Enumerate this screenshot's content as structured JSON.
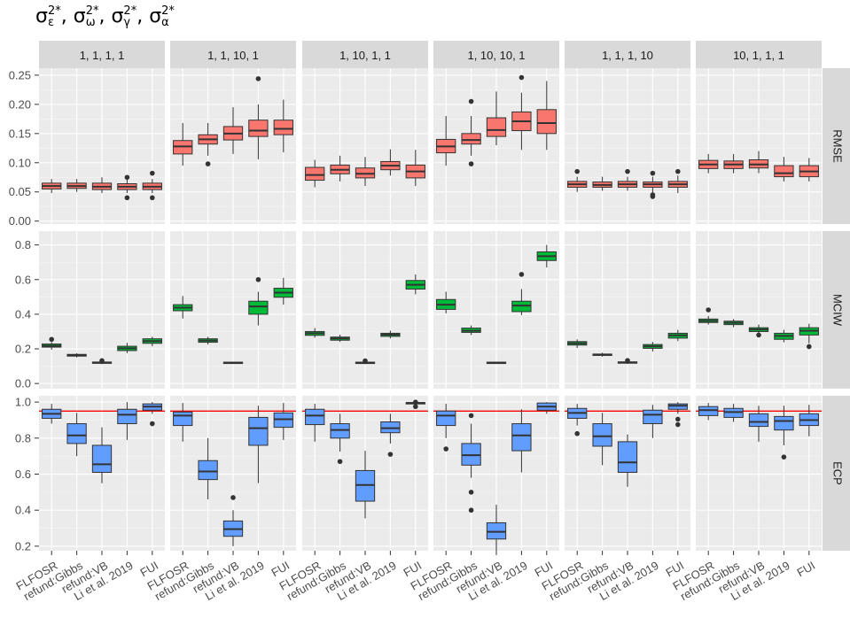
{
  "title": {
    "sym": "σ",
    "parts": [
      {
        "sup": "2*",
        "sub": "ε"
      },
      {
        "sup": "2*",
        "sub": "ω"
      },
      {
        "sup": "2*",
        "sub": "γ"
      },
      {
        "sup": "2*",
        "sub": "α"
      }
    ],
    "sep": ", "
  },
  "chart_data": {
    "type": "box",
    "facet_columns": [
      "1, 1, 1, 1",
      "1, 1, 10, 1",
      "1, 10, 1, 1",
      "1, 10, 10, 1",
      "1, 1, 1, 10",
      "10, 1, 1, 1"
    ],
    "facet_rows": [
      "RMSE",
      "MCIW",
      "ECP"
    ],
    "categories": [
      "FLFOSR",
      "refund:Gibbs",
      "refund:VB",
      "Li et al. 2019",
      "FUI"
    ],
    "colors": {
      "RMSE": "#F8766D",
      "MCIW": "#00BA38",
      "ECP": "#619CFF"
    },
    "reference_line": {
      "row": "ECP",
      "y": 0.95,
      "color": "#ff0000"
    },
    "rows": {
      "RMSE": {
        "ylim": [
          -0.005,
          0.262
        ],
        "ticks": [
          0.0,
          0.05,
          0.1,
          0.15,
          0.2,
          0.25
        ],
        "tick_labels": [
          "0.00",
          "0.05",
          "0.10",
          "0.15",
          "0.20",
          "0.25"
        ],
        "boxes": [
          [
            [
              0.048,
              0.055,
              0.06,
              0.065,
              0.072,
              []
            ],
            [
              0.05,
              0.056,
              0.06,
              0.065,
              0.072,
              []
            ],
            [
              0.048,
              0.054,
              0.059,
              0.065,
              0.075,
              []
            ],
            [
              0.048,
              0.054,
              0.059,
              0.064,
              0.072,
              [
                0.04,
                0.075
              ]
            ],
            [
              0.048,
              0.054,
              0.059,
              0.065,
              0.072,
              [
                0.04,
                0.082
              ]
            ]
          ],
          [
            [
              0.095,
              0.115,
              0.128,
              0.138,
              0.168,
              []
            ],
            [
              0.112,
              0.132,
              0.14,
              0.148,
              0.168,
              [
                0.098
              ]
            ],
            [
              0.115,
              0.139,
              0.15,
              0.162,
              0.195,
              []
            ],
            [
              0.106,
              0.145,
              0.155,
              0.173,
              0.2,
              [
                0.244
              ]
            ],
            [
              0.118,
              0.148,
              0.158,
              0.173,
              0.208,
              []
            ]
          ],
          [
            [
              0.058,
              0.07,
              0.079,
              0.092,
              0.105,
              []
            ],
            [
              0.068,
              0.081,
              0.088,
              0.096,
              0.112,
              []
            ],
            [
              0.06,
              0.074,
              0.081,
              0.091,
              0.11,
              []
            ],
            [
              0.078,
              0.088,
              0.095,
              0.102,
              0.123,
              []
            ],
            [
              0.06,
              0.074,
              0.085,
              0.096,
              0.122,
              []
            ]
          ],
          [
            [
              0.095,
              0.117,
              0.128,
              0.14,
              0.18,
              []
            ],
            [
              0.112,
              0.132,
              0.139,
              0.15,
              0.18,
              [
                0.098,
                0.205
              ]
            ],
            [
              0.13,
              0.145,
              0.156,
              0.177,
              0.222,
              []
            ],
            [
              0.122,
              0.155,
              0.171,
              0.187,
              0.22,
              [
                0.246
              ]
            ],
            [
              0.122,
              0.15,
              0.168,
              0.191,
              0.24,
              []
            ]
          ],
          [
            [
              0.05,
              0.058,
              0.063,
              0.068,
              0.076,
              [
                0.085
              ]
            ],
            [
              0.052,
              0.058,
              0.062,
              0.067,
              0.076,
              []
            ],
            [
              0.052,
              0.058,
              0.063,
              0.068,
              0.076,
              [
                0.085
              ]
            ],
            [
              0.048,
              0.058,
              0.063,
              0.067,
              0.076,
              [
                0.042,
                0.045,
                0.082
              ]
            ],
            [
              0.048,
              0.058,
              0.063,
              0.068,
              0.078,
              [
                0.085
              ]
            ]
          ],
          [
            [
              0.082,
              0.09,
              0.097,
              0.104,
              0.115,
              []
            ],
            [
              0.082,
              0.09,
              0.097,
              0.103,
              0.115,
              []
            ],
            [
              0.082,
              0.091,
              0.097,
              0.105,
              0.12,
              []
            ],
            [
              0.068,
              0.076,
              0.082,
              0.095,
              0.11,
              []
            ],
            [
              0.068,
              0.076,
              0.085,
              0.095,
              0.108,
              []
            ]
          ]
        ]
      },
      "MCIW": {
        "ylim": [
          -0.03,
          0.88
        ],
        "ticks": [
          0.0,
          0.2,
          0.4,
          0.6,
          0.8
        ],
        "tick_labels": [
          "0.0",
          "0.2",
          "0.4",
          "0.6",
          "0.8"
        ],
        "boxes": [
          [
            [
              0.195,
              0.21,
              0.218,
              0.228,
              0.24,
              [
                0.255
              ]
            ],
            [
              0.15,
              0.158,
              0.163,
              0.168,
              0.175,
              []
            ],
            [
              0.112,
              0.117,
              0.12,
              0.124,
              0.128,
              [
                0.132
              ]
            ],
            [
              0.175,
              0.19,
              0.203,
              0.215,
              0.235,
              []
            ],
            [
              0.215,
              0.232,
              0.245,
              0.258,
              0.27,
              []
            ]
          ],
          [
            [
              0.375,
              0.42,
              0.438,
              0.455,
              0.505,
              []
            ],
            [
              0.225,
              0.238,
              0.248,
              0.258,
              0.27,
              []
            ],
            [
              0.113,
              0.117,
              0.12,
              0.123,
              0.126,
              []
            ],
            [
              0.335,
              0.4,
              0.445,
              0.475,
              0.53,
              [
                0.6
              ]
            ],
            [
              0.455,
              0.498,
              0.525,
              0.55,
              0.61,
              []
            ]
          ],
          [
            [
              0.265,
              0.278,
              0.29,
              0.3,
              0.32,
              []
            ],
            [
              0.24,
              0.25,
              0.26,
              0.268,
              0.282,
              []
            ],
            [
              0.112,
              0.116,
              0.12,
              0.123,
              0.126,
              [
                0.131
              ]
            ],
            [
              0.26,
              0.272,
              0.282,
              0.29,
              0.305,
              []
            ],
            [
              0.515,
              0.545,
              0.57,
              0.595,
              0.63,
              []
            ]
          ],
          [
            [
              0.405,
              0.428,
              0.455,
              0.485,
              0.53,
              []
            ],
            [
              0.28,
              0.295,
              0.305,
              0.32,
              0.335,
              []
            ],
            [
              0.113,
              0.117,
              0.12,
              0.123,
              0.126,
              []
            ],
            [
              0.395,
              0.415,
              0.45,
              0.475,
              0.545,
              [
                0.63
              ]
            ],
            [
              0.67,
              0.71,
              0.735,
              0.76,
              0.8,
              []
            ]
          ],
          [
            [
              0.205,
              0.222,
              0.232,
              0.242,
              0.255,
              []
            ],
            [
              0.155,
              0.162,
              0.166,
              0.17,
              0.178,
              []
            ],
            [
              0.113,
              0.117,
              0.121,
              0.125,
              0.13,
              [
                0.133
              ]
            ],
            [
              0.185,
              0.203,
              0.215,
              0.225,
              0.24,
              []
            ],
            [
              0.245,
              0.262,
              0.278,
              0.29,
              0.31,
              []
            ]
          ],
          [
            [
              0.34,
              0.352,
              0.362,
              0.372,
              0.39,
              [
                0.425
              ]
            ],
            [
              0.325,
              0.34,
              0.35,
              0.36,
              0.372,
              []
            ],
            [
              0.285,
              0.3,
              0.312,
              0.322,
              0.34,
              [
                0.28
              ]
            ],
            [
              0.238,
              0.255,
              0.275,
              0.29,
              0.31,
              []
            ],
            [
              0.232,
              0.28,
              0.305,
              0.322,
              0.345,
              [
                0.213
              ]
            ]
          ]
        ]
      },
      "ECP": {
        "ylim": [
          0.175,
          1.035
        ],
        "ticks": [
          0.2,
          0.4,
          0.6,
          0.8,
          1.0
        ],
        "tick_labels": [
          "0.2",
          "0.4",
          "0.6",
          "0.8",
          "1.0"
        ],
        "boxes": [
          [
            [
              0.88,
              0.91,
              0.935,
              0.96,
              0.99,
              []
            ],
            [
              0.7,
              0.77,
              0.815,
              0.88,
              0.94,
              []
            ],
            [
              0.55,
              0.61,
              0.655,
              0.76,
              0.86,
              []
            ],
            [
              0.79,
              0.88,
              0.93,
              0.96,
              1.0,
              []
            ],
            [
              0.935,
              0.955,
              0.975,
              0.99,
              1.0,
              [
                0.88
              ]
            ]
          ],
          [
            [
              0.78,
              0.87,
              0.925,
              0.945,
              0.995,
              []
            ],
            [
              0.46,
              0.57,
              0.615,
              0.675,
              0.8,
              []
            ],
            [
              0.2,
              0.255,
              0.295,
              0.34,
              0.4,
              [
                0.47
              ]
            ],
            [
              0.55,
              0.76,
              0.855,
              0.915,
              0.98,
              []
            ],
            [
              0.79,
              0.86,
              0.905,
              0.94,
              0.995,
              []
            ]
          ],
          [
            [
              0.78,
              0.875,
              0.925,
              0.96,
              0.99,
              []
            ],
            [
              0.725,
              0.8,
              0.845,
              0.88,
              0.935,
              [
                0.67
              ]
            ],
            [
              0.355,
              0.45,
              0.54,
              0.62,
              0.73,
              []
            ],
            [
              0.77,
              0.83,
              0.855,
              0.89,
              0.935,
              [
                0.71
              ]
            ],
            [
              0.99,
              0.993,
              0.995,
              0.997,
              1.0,
              [
                0.975,
                1.0
              ]
            ]
          ],
          [
            [
              0.8,
              0.87,
              0.925,
              0.95,
              0.99,
              [
                0.74
              ]
            ],
            [
              0.58,
              0.65,
              0.705,
              0.77,
              0.88,
              [
                0.4,
                0.5,
                0.925
              ]
            ],
            [
              0.17,
              0.24,
              0.28,
              0.33,
              0.43,
              []
            ],
            [
              0.61,
              0.73,
              0.815,
              0.88,
              0.96,
              []
            ],
            [
              0.935,
              0.955,
              0.975,
              0.995,
              1.0,
              []
            ]
          ],
          [
            [
              0.87,
              0.91,
              0.94,
              0.965,
              0.99,
              [
                0.825
              ]
            ],
            [
              0.65,
              0.755,
              0.81,
              0.88,
              0.94,
              []
            ],
            [
              0.53,
              0.61,
              0.665,
              0.78,
              0.82,
              []
            ],
            [
              0.8,
              0.88,
              0.93,
              0.955,
              0.985,
              []
            ],
            [
              0.935,
              0.96,
              0.98,
              0.99,
              1.0,
              [
                0.875,
                0.905
              ]
            ]
          ],
          [
            [
              0.9,
              0.925,
              0.955,
              0.975,
              0.995,
              []
            ],
            [
              0.89,
              0.915,
              0.945,
              0.965,
              0.99,
              []
            ],
            [
              0.78,
              0.865,
              0.89,
              0.935,
              0.98,
              []
            ],
            [
              0.76,
              0.845,
              0.895,
              0.92,
              0.98,
              [
                0.695
              ]
            ],
            [
              0.81,
              0.87,
              0.9,
              0.935,
              0.985,
              []
            ]
          ]
        ]
      }
    }
  }
}
